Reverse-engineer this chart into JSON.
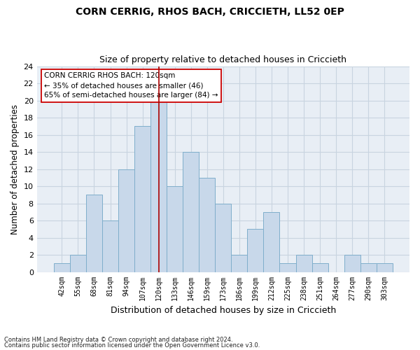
{
  "title_line1": "CORN CERRIG, RHOS BACH, CRICCIETH, LL52 0EP",
  "title_line2": "Size of property relative to detached houses in Criccieth",
  "xlabel": "Distribution of detached houses by size in Criccieth",
  "ylabel": "Number of detached properties",
  "categories": [
    "42sqm",
    "55sqm",
    "68sqm",
    "81sqm",
    "94sqm",
    "107sqm",
    "120sqm",
    "133sqm",
    "146sqm",
    "159sqm",
    "173sqm",
    "186sqm",
    "199sqm",
    "212sqm",
    "225sqm",
    "238sqm",
    "251sqm",
    "264sqm",
    "277sqm",
    "290sqm",
    "303sqm"
  ],
  "values": [
    1,
    2,
    9,
    6,
    12,
    17,
    20,
    10,
    14,
    11,
    8,
    2,
    5,
    7,
    1,
    2,
    1,
    0,
    2,
    1,
    1
  ],
  "bar_color": "#c8d8ea",
  "bar_edge_color": "#7faecb",
  "highlight_index": 6,
  "vline_color": "#aa0000",
  "annotation_text": "CORN CERRIG RHOS BACH: 120sqm\n← 35% of detached houses are smaller (46)\n65% of semi-detached houses are larger (84) →",
  "annotation_box_color": "#ffffff",
  "annotation_box_edge": "#cc0000",
  "ylim": [
    0,
    24
  ],
  "yticks": [
    0,
    2,
    4,
    6,
    8,
    10,
    12,
    14,
    16,
    18,
    20,
    22,
    24
  ],
  "grid_color": "#c8d4e0",
  "background_color": "#e8eef5",
  "fig_background": "#ffffff",
  "footnote1": "Contains HM Land Registry data © Crown copyright and database right 2024.",
  "footnote2": "Contains public sector information licensed under the Open Government Licence v3.0."
}
